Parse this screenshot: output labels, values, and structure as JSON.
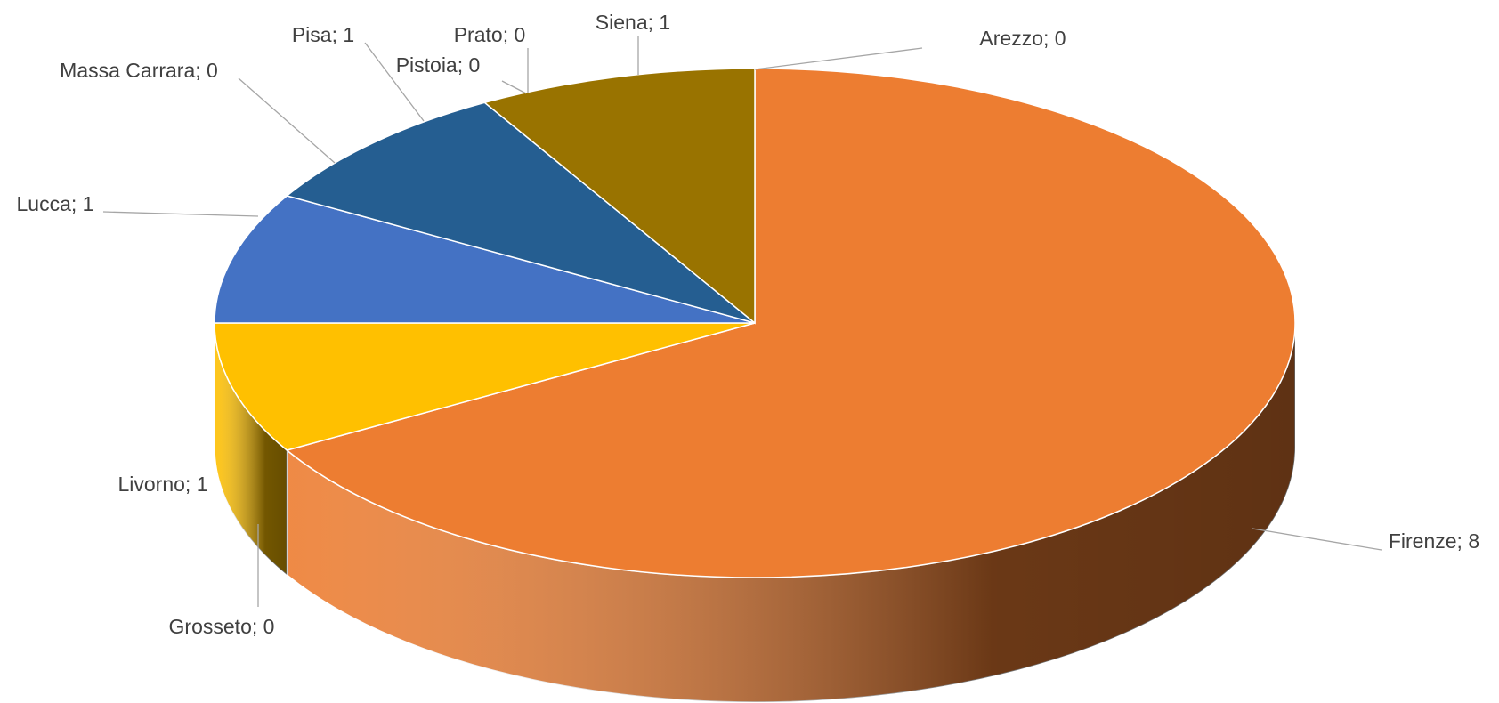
{
  "chart_data": {
    "type": "pie",
    "categories": [
      "Arezzo",
      "Firenze",
      "Grosseto",
      "Livorno",
      "Lucca",
      "Massa Carrara",
      "Pisa",
      "Pistoia",
      "Prato",
      "Siena"
    ],
    "values": [
      0,
      8,
      0,
      1,
      1,
      0,
      1,
      0,
      0,
      1
    ],
    "value_labels": [
      "Arezzo; 0",
      "Firenze; 8",
      "Grosseto; 0",
      "Livorno; 1",
      "Lucca; 1",
      "Massa Carrara; 0",
      "Pisa; 1",
      "Pistoia; 0",
      "Prato; 0",
      "Siena; 1"
    ],
    "colors": [
      "#5B9BD5",
      "#ED7D31",
      "#A5A5A5",
      "#FFC000",
      "#4472C4",
      "#70AD47",
      "#255E91",
      "#9E480E",
      "#636363",
      "#997300"
    ]
  }
}
